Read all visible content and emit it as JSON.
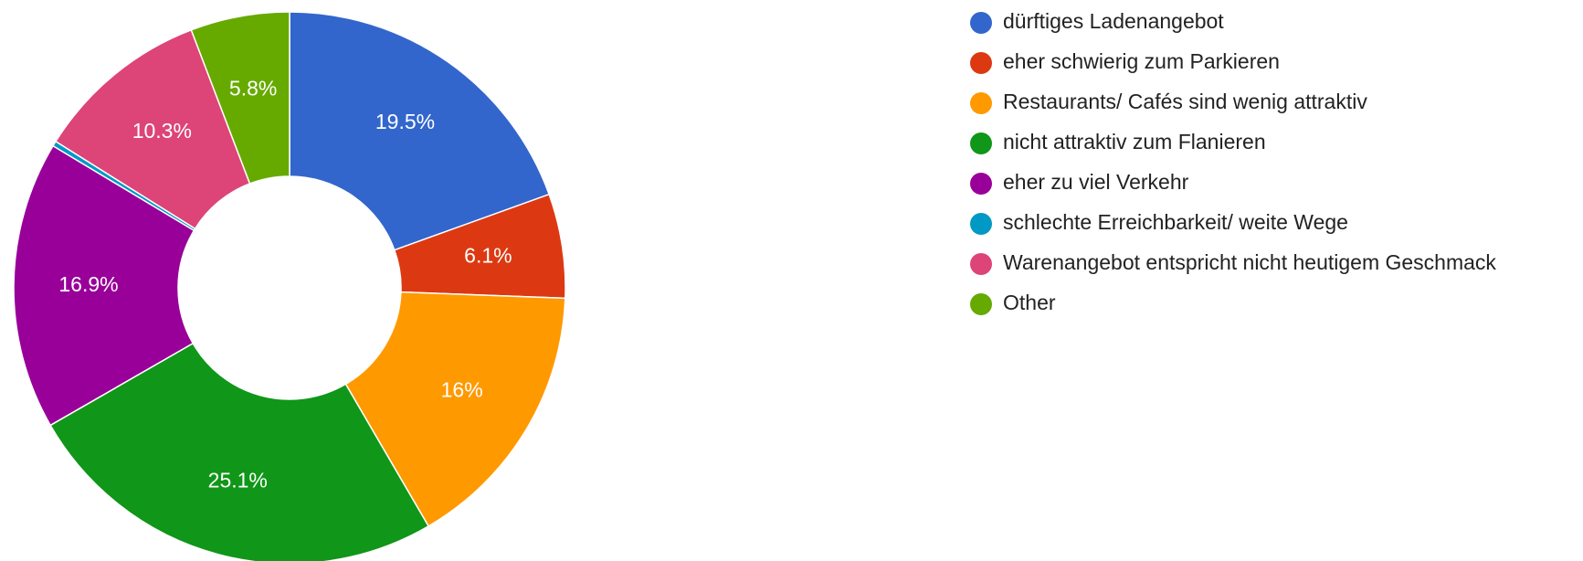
{
  "chart_data": {
    "type": "pie",
    "categories": [
      "dürftiges Ladenangebot",
      "eher schwierig zum Parkieren",
      "Restaurants/ Cafés sind wenig attraktiv",
      "nicht attraktiv zum Flanieren",
      "eher zu viel Verkehr",
      "schlechte Erreichbarkeit/ weite Wege",
      "Warenangebot entspricht nicht heutigem Geschmack",
      "Other"
    ],
    "values": [
      19.5,
      6.1,
      16,
      25.1,
      16.9,
      0.3,
      10.3,
      5.8
    ],
    "value_labels": [
      "19.5%",
      "6.1%",
      "16%",
      "25.1%",
      "16.9%",
      null,
      "10.3%",
      "5.8%"
    ],
    "colors": [
      "#3366cc",
      "#dc3912",
      "#ff9900",
      "#109618",
      "#990099",
      "#0099c6",
      "#dd4477",
      "#66aa00"
    ],
    "legend": "right"
  }
}
